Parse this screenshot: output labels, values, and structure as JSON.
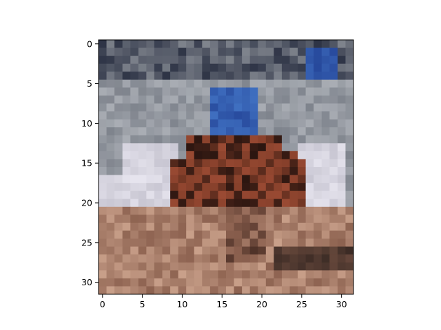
{
  "chart_data": {
    "type": "heatmap",
    "subtype": "rgb-image",
    "title": "",
    "xlabel": "",
    "ylabel": "",
    "image_size": [
      32,
      32
    ],
    "xlim": [
      -0.5,
      31.5
    ],
    "ylim": [
      31.5,
      -0.5
    ],
    "xticks": [
      0,
      5,
      10,
      15,
      20,
      25,
      30
    ],
    "yticks": [
      0,
      5,
      10,
      15,
      20,
      25,
      30
    ],
    "grid": false,
    "subject": "rider on a brown horse in front of a white arena fence, tan dirt ground, blurred crowd background",
    "palette": {
      "sky_dark": "#2e3446",
      "crowd_gray": "#7f848d",
      "crowd_light": "#a9adb4",
      "rider_blue": "#3f6fc0",
      "rider_blue_dark": "#26479a",
      "fence_white": "#e6e4ee",
      "fence_shadow": "#c8c6d2",
      "horse_dark": "#2a1510",
      "horse_brown": "#7a3a26",
      "horse_red": "#9a4a33",
      "ground_tan": "#b98c73",
      "ground_dark": "#8d6250",
      "ground_light": "#c9a08a",
      "rail_dark": "#3a2a24"
    }
  }
}
